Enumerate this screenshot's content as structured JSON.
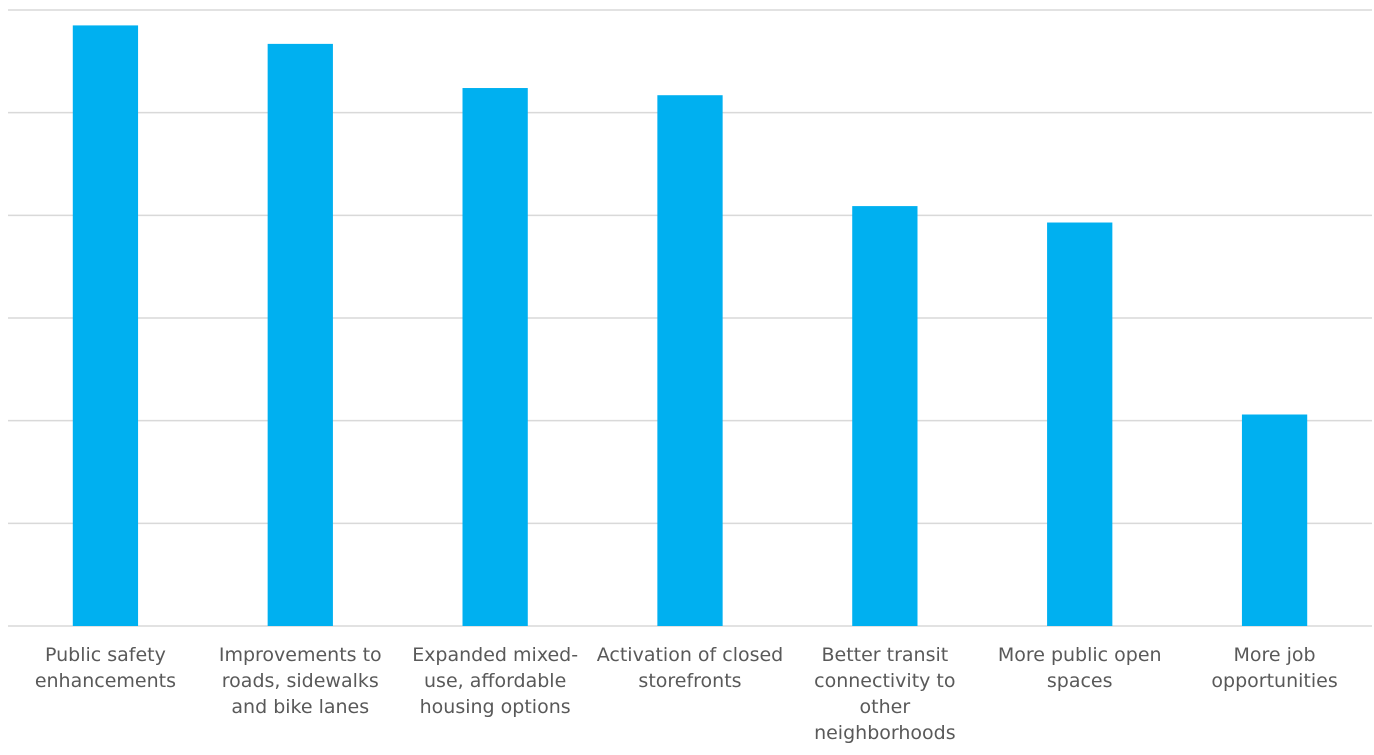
{
  "chart_data": {
    "type": "bar",
    "categories": [
      "Public safety enhancements",
      "Improvements to roads, sidewalks and bike lanes",
      "Expanded mixed-use, affordable housing options",
      "Activation of closed storefronts",
      "Better transit connectivity to other neighborhoods",
      "More public open spaces",
      "More job opportunities"
    ],
    "values": [
      5.85,
      5.67,
      5.24,
      5.17,
      4.09,
      3.93,
      2.06
    ],
    "ylim": [
      0,
      6
    ],
    "grid": true,
    "y_tick_labels_shown": false,
    "colors": {
      "bar": "#00b0f0",
      "grid": "#d9d9d9",
      "text": "#595959"
    }
  }
}
